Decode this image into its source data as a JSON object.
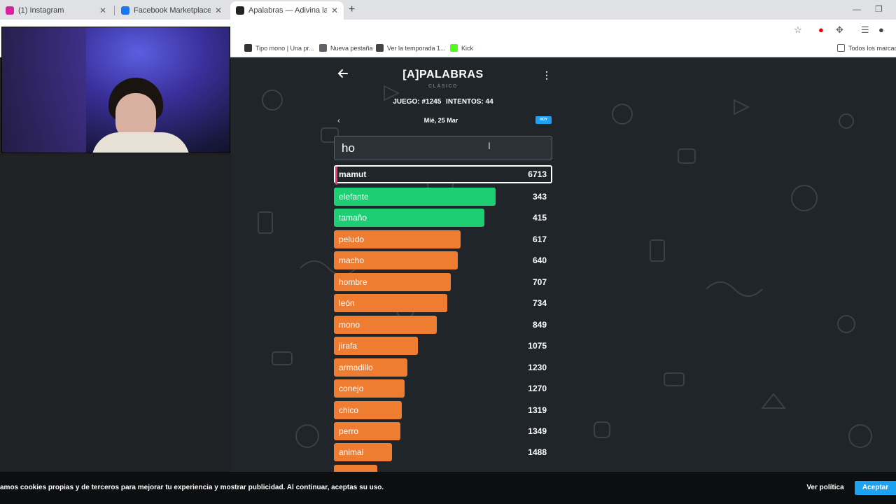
{
  "browser": {
    "tabs": [
      {
        "title": "(1) Instagram",
        "color": "#d6249f"
      },
      {
        "title": "Facebook Marketplace | Facebo",
        "color": "#1877f2"
      },
      {
        "title": "Apalabras — Adivina la Palabra",
        "color": "#222222"
      }
    ],
    "bookmarks": [
      {
        "label": "Tipo mono | Una pr...",
        "color": "#333333"
      },
      {
        "label": "Nueva pestaña",
        "color": "#5f6368"
      },
      {
        "label": "Ver la temporada 1...",
        "color": "#444444"
      },
      {
        "label": "Kick",
        "color": "#53fc18"
      }
    ],
    "all_bookmarks": "Todos los marcadores"
  },
  "game": {
    "title": "[A]PALABRAS",
    "mode": "CLÁSICO",
    "game_label": "JUEGO: #1245",
    "attempts_label": "INTENTOS: 44",
    "date": "Mié, 25 Mar",
    "today_badge": "HOY",
    "input_value": "ho",
    "current_guess": {
      "word": "mamut",
      "score": "6713"
    },
    "guesses": [
      {
        "word": "elefante",
        "score": "343",
        "fill": 0.74,
        "color": "#1ece73"
      },
      {
        "word": "tamaño",
        "score": "415",
        "fill": 0.69,
        "color": "#1ece73"
      },
      {
        "word": "peludo",
        "score": "617",
        "fill": 0.58,
        "color": "#ef7d31"
      },
      {
        "word": "macho",
        "score": "640",
        "fill": 0.566,
        "color": "#ef7d31"
      },
      {
        "word": "hombre",
        "score": "707",
        "fill": 0.535,
        "color": "#ef7d31"
      },
      {
        "word": "león",
        "score": "734",
        "fill": 0.52,
        "color": "#ef7d31"
      },
      {
        "word": "mono",
        "score": "849",
        "fill": 0.47,
        "color": "#ef7d31"
      },
      {
        "word": "jirafa",
        "score": "1075",
        "fill": 0.385,
        "color": "#ef7d31"
      },
      {
        "word": "armadillo",
        "score": "1230",
        "fill": 0.335,
        "color": "#ef7d31"
      },
      {
        "word": "conejo",
        "score": "1270",
        "fill": 0.323,
        "color": "#ef7d31"
      },
      {
        "word": "chico",
        "score": "1319",
        "fill": 0.31,
        "color": "#ef7d31"
      },
      {
        "word": "perro",
        "score": "1349",
        "fill": 0.303,
        "color": "#ef7d31"
      },
      {
        "word": "animal",
        "score": "1488",
        "fill": 0.265,
        "color": "#ef7d31"
      },
      {
        "word": "",
        "score": "",
        "fill": 0.2,
        "color": "#ef7d31"
      }
    ]
  },
  "cookies": {
    "text": "amos cookies propias y de terceros para mejorar tu experiencia y mostrar publicidad. Al continuar, aceptas su uso.",
    "policy_label": "Ver política",
    "accept_label": "Aceptar"
  }
}
